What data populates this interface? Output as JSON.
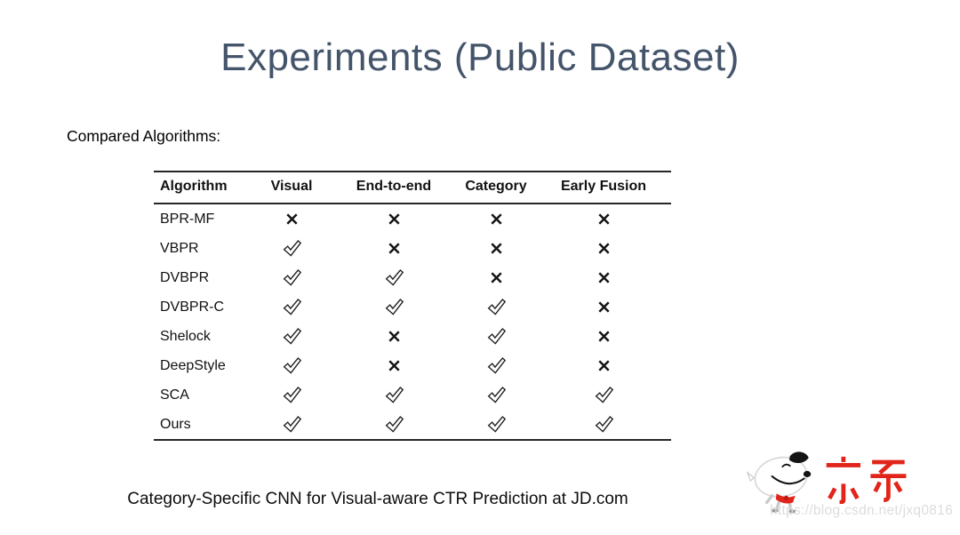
{
  "title": "Experiments (Public Dataset)",
  "compared_label": "Compared Algorithms:",
  "table": {
    "columns": [
      "Algorithm",
      "Visual",
      "End-to-end",
      "Category",
      "Early Fusion"
    ],
    "rows": [
      {
        "name": "BPR-MF",
        "marks": [
          "cross",
          "cross",
          "cross",
          "cross"
        ]
      },
      {
        "name": "VBPR",
        "marks": [
          "check",
          "cross",
          "cross",
          "cross"
        ]
      },
      {
        "name": "DVBPR",
        "marks": [
          "check",
          "check",
          "cross",
          "cross"
        ]
      },
      {
        "name": "DVBPR-C",
        "marks": [
          "check",
          "check",
          "check",
          "cross"
        ]
      },
      {
        "name": "Shelock",
        "marks": [
          "check",
          "cross",
          "check",
          "cross"
        ]
      },
      {
        "name": "DeepStyle",
        "marks": [
          "check",
          "cross",
          "check",
          "cross"
        ]
      },
      {
        "name": "SCA",
        "marks": [
          "check",
          "check",
          "check",
          "check"
        ]
      },
      {
        "name": "Ours",
        "marks": [
          "check",
          "check",
          "check",
          "check"
        ]
      }
    ],
    "mark_legend": {
      "check": "supported",
      "cross": "not-supported"
    }
  },
  "caption": "Category-Specific CNN for Visual-aware CTR Prediction at JD.com",
  "logo": {
    "text": "京东",
    "mascot": "jd-joy-dog"
  },
  "watermark": "https://blog.csdn.net/jxq0816",
  "colors": {
    "title": "#44546A",
    "jd_red": "#e1251b",
    "watermark": "#dcdcdc",
    "table_text": "#111111"
  }
}
